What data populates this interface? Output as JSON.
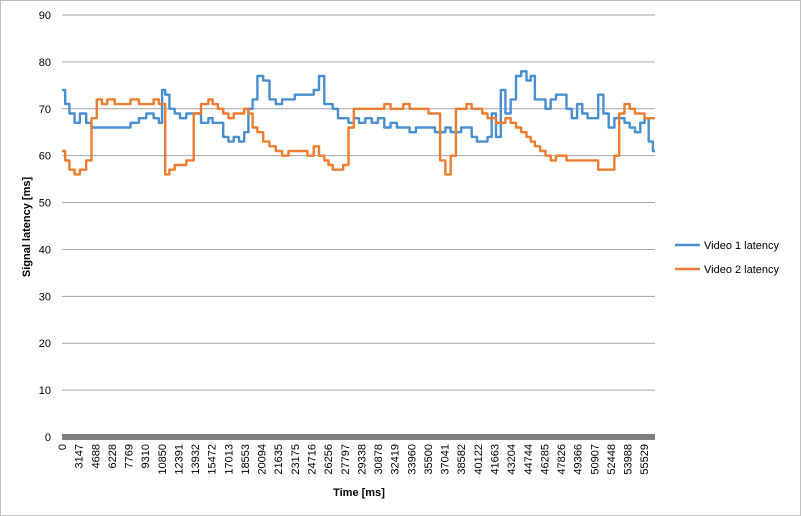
{
  "chart_data": {
    "type": "line",
    "title": "",
    "xlabel": "Time [ms]",
    "ylabel": "Signal latency [ms]",
    "ylim": [
      0,
      90
    ],
    "yticks": [
      0,
      10,
      20,
      30,
      40,
      50,
      60,
      70,
      80,
      90
    ],
    "xlim": [
      0,
      56300
    ],
    "xticks": [
      "0",
      "3147",
      "4688",
      "6228",
      "7769",
      "9310",
      "10850",
      "12391",
      "13932",
      "15472",
      "17013",
      "18553",
      "20094",
      "21635",
      "23175",
      "24716",
      "26256",
      "27797",
      "29338",
      "30878",
      "32419",
      "33960",
      "35500",
      "37041",
      "38582",
      "40122",
      "41663",
      "43204",
      "44744",
      "46285",
      "47826",
      "49366",
      "50907",
      "52448",
      "53988",
      "55529"
    ],
    "grid": "horizontal",
    "legend": "right",
    "series": [
      {
        "name": "Video 1 latency",
        "color": "#4a8fd0",
        "x": [
          0,
          300,
          700,
          1200,
          1700,
          2300,
          2800,
          3300,
          3800,
          4300,
          5000,
          5800,
          6500,
          7300,
          8000,
          8700,
          9200,
          9500,
          9800,
          10200,
          10700,
          11200,
          11800,
          12500,
          13200,
          13900,
          14300,
          14800,
          15300,
          15800,
          16300,
          16800,
          17300,
          17700,
          18100,
          18553,
          19100,
          19700,
          20300,
          20900,
          21500,
          22100,
          22700,
          23300,
          23900,
          24400,
          24900,
          25300,
          25700,
          26200,
          26700,
          27200,
          27700,
          28200,
          28800,
          29400,
          30000,
          30600,
          31200,
          31800,
          32400,
          33000,
          33600,
          34200,
          34800,
          35400,
          35900,
          36400,
          36900,
          37400,
          37900,
          38400,
          38900,
          39400,
          39900,
          40400,
          40800,
          41200,
          41663,
          42100,
          42600,
          43100,
          43600,
          44100,
          44500,
          44900,
          45400,
          45900,
          46400,
          46900,
          47400,
          47900,
          48400,
          48900,
          49400,
          49900,
          50400,
          50907,
          51400,
          51900,
          52448,
          52900,
          53400,
          53900,
          54400,
          54900,
          55300,
          55700,
          56100
        ],
        "values": [
          74,
          71,
          69,
          67,
          69,
          67,
          66,
          66,
          66,
          66,
          66,
          66,
          67,
          68,
          69,
          68,
          67,
          74,
          73,
          70,
          69,
          68,
          69,
          69,
          67,
          68,
          67,
          67,
          64,
          63,
          64,
          63,
          65,
          70,
          72,
          77,
          76,
          72,
          71,
          72,
          72,
          73,
          73,
          73,
          74,
          77,
          71,
          71,
          70,
          68,
          68,
          67,
          68,
          67,
          68,
          67,
          68,
          66,
          67,
          66,
          66,
          65,
          66,
          66,
          66,
          65,
          65,
          66,
          65,
          65,
          66,
          66,
          64,
          63,
          63,
          64,
          69,
          64,
          74,
          69,
          72,
          77,
          78,
          76,
          77,
          72,
          72,
          70,
          72,
          73,
          73,
          70,
          68,
          71,
          69,
          68,
          68,
          73,
          69,
          66,
          68,
          68,
          67,
          66,
          65,
          67,
          68,
          63,
          61
        ]
      },
      {
        "name": "Video 2 latency",
        "color": "#ed7d31",
        "x": [
          0,
          300,
          700,
          1200,
          1700,
          2300,
          2800,
          3300,
          3800,
          4300,
          5000,
          5800,
          6500,
          7300,
          8000,
          8700,
          9200,
          9500,
          9800,
          10200,
          10700,
          11200,
          11800,
          12500,
          13200,
          13900,
          14300,
          14800,
          15300,
          15800,
          16300,
          16800,
          17300,
          17700,
          18100,
          18553,
          19100,
          19700,
          20300,
          20900,
          21500,
          22100,
          22700,
          23300,
          23900,
          24400,
          24900,
          25300,
          25700,
          26200,
          26700,
          27200,
          27700,
          28200,
          28800,
          29400,
          30000,
          30600,
          31200,
          31800,
          32400,
          33000,
          33600,
          34200,
          34800,
          35400,
          35900,
          36400,
          36900,
          37400,
          37900,
          38400,
          38900,
          39400,
          39900,
          40400,
          40800,
          41200,
          41663,
          42100,
          42600,
          43100,
          43600,
          44100,
          44500,
          44900,
          45400,
          45900,
          46400,
          46900,
          47400,
          47900,
          48400,
          48900,
          49400,
          49900,
          50400,
          50907,
          51400,
          51900,
          52448,
          52900,
          53400,
          53900,
          54400,
          54900,
          55300,
          55700,
          56100
        ],
        "values": [
          61,
          59,
          57,
          56,
          57,
          59,
          68,
          72,
          71,
          72,
          71,
          71,
          72,
          71,
          71,
          72,
          71,
          71,
          56,
          57,
          58,
          58,
          59,
          69,
          71,
          72,
          71,
          70,
          69,
          68,
          69,
          69,
          70,
          69,
          66,
          65,
          63,
          62,
          61,
          60,
          61,
          61,
          61,
          60,
          62,
          60,
          59,
          58,
          57,
          57,
          58,
          66,
          70,
          70,
          70,
          70,
          70,
          71,
          70,
          70,
          71,
          70,
          70,
          70,
          69,
          69,
          59,
          56,
          60,
          70,
          70,
          71,
          70,
          70,
          69,
          68,
          68,
          67,
          67,
          68,
          67,
          66,
          65,
          64,
          63,
          62,
          61,
          60,
          59,
          60,
          60,
          59,
          59,
          59,
          59,
          59,
          59,
          57,
          57,
          57,
          60,
          69,
          71,
          70,
          69,
          69,
          68,
          68,
          68
        ]
      }
    ]
  }
}
